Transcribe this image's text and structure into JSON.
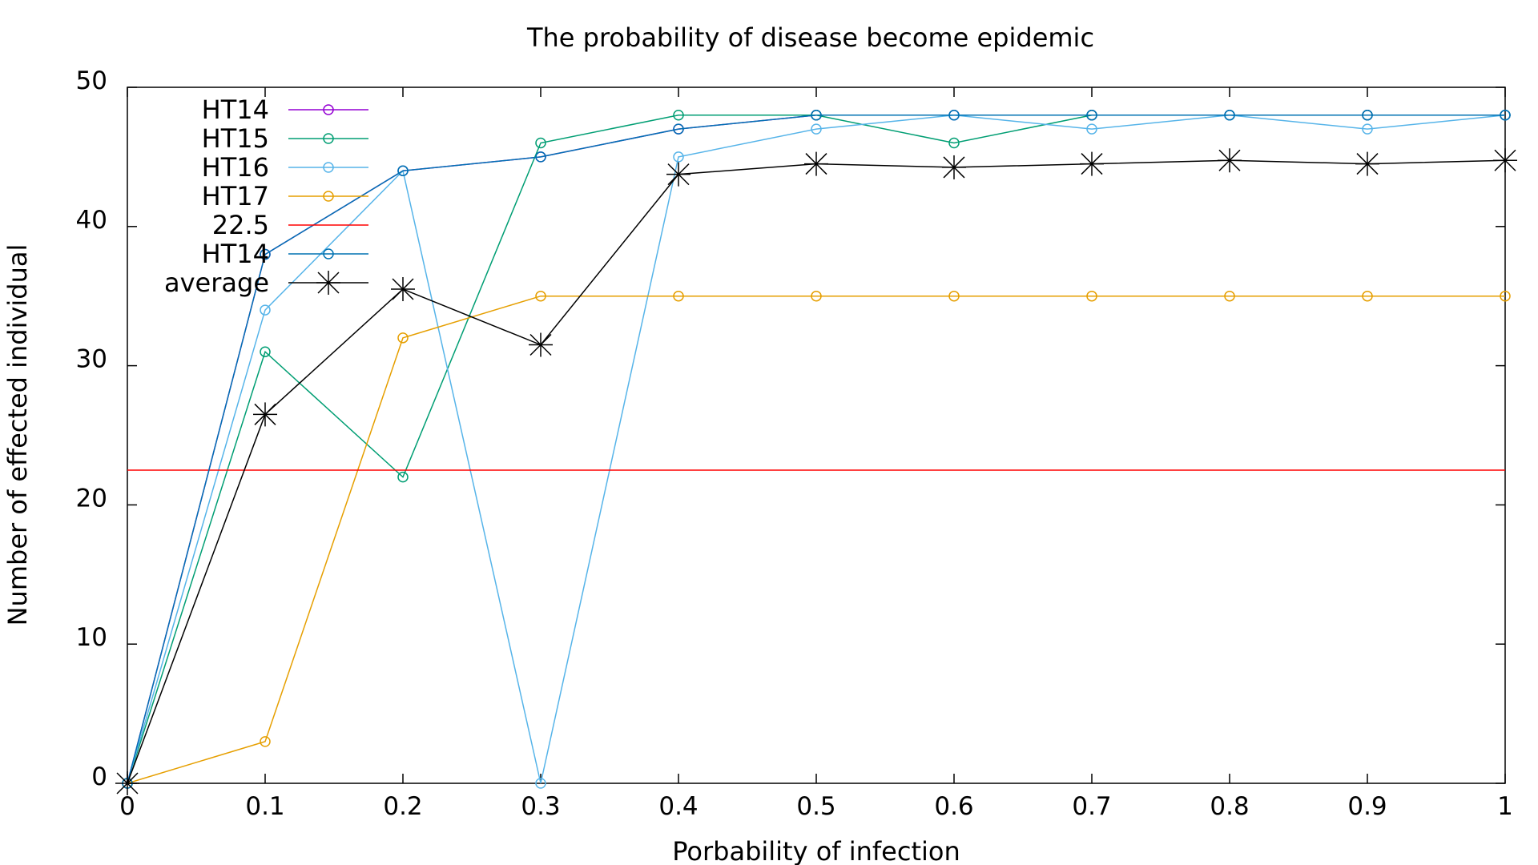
{
  "chart_data": {
    "type": "line",
    "title": "The probability of disease become epidemic",
    "xlabel": "Porbability of infection",
    "ylabel": "Number of effected individual",
    "xlim": [
      0,
      1
    ],
    "ylim": [
      0,
      50
    ],
    "xticks": [
      0,
      0.1,
      0.2,
      0.3,
      0.4,
      0.5,
      0.6,
      0.7,
      0.8,
      0.9,
      1
    ],
    "xtick_labels": [
      "0",
      "0.1",
      "0.2",
      "0.3",
      "0.4",
      "0.5",
      "0.6",
      "0.7",
      "0.8",
      "0.9",
      "1"
    ],
    "yticks": [
      0,
      10,
      20,
      30,
      40,
      50
    ],
    "ytick_labels": [
      "0",
      "10",
      "20",
      "30",
      "40",
      "50"
    ],
    "grid": false,
    "legend_position": "top-left",
    "x": [
      0,
      0.1,
      0.2,
      0.3,
      0.4,
      0.5,
      0.6,
      0.7,
      0.8,
      0.9,
      1
    ],
    "series": [
      {
        "name": "HT14",
        "color": "#9400d3",
        "marker": "circle",
        "values": [
          0,
          38,
          44,
          45,
          47,
          48,
          48,
          48,
          48,
          48,
          48
        ]
      },
      {
        "name": "HT15",
        "color": "#009e73",
        "marker": "circle",
        "values": [
          0,
          31,
          22,
          46,
          48,
          48,
          46,
          48,
          48,
          48,
          48
        ]
      },
      {
        "name": "HT16",
        "color": "#56b4e9",
        "marker": "circle",
        "values": [
          0,
          34,
          44,
          0,
          45,
          47,
          48,
          47,
          48,
          47,
          48
        ]
      },
      {
        "name": "HT17",
        "color": "#e69f00",
        "marker": "circle",
        "values": [
          0,
          3,
          32,
          35,
          35,
          35,
          35,
          35,
          35,
          35,
          35
        ]
      },
      {
        "name": "22.5",
        "color": "#ff0000",
        "marker": "none",
        "values": [
          22.5,
          22.5,
          22.5,
          22.5,
          22.5,
          22.5,
          22.5,
          22.5,
          22.5,
          22.5,
          22.5
        ]
      },
      {
        "name": "HT14",
        "color": "#0072b2",
        "marker": "circle",
        "values": [
          0,
          38,
          44,
          45,
          47,
          48,
          48,
          48,
          48,
          48,
          48
        ]
      },
      {
        "name": "average",
        "color": "#000000",
        "marker": "star",
        "values": [
          0,
          26.5,
          35.5,
          31.5,
          43.75,
          44.5,
          44.25,
          44.5,
          44.75,
          44.5,
          44.75
        ]
      }
    ]
  }
}
